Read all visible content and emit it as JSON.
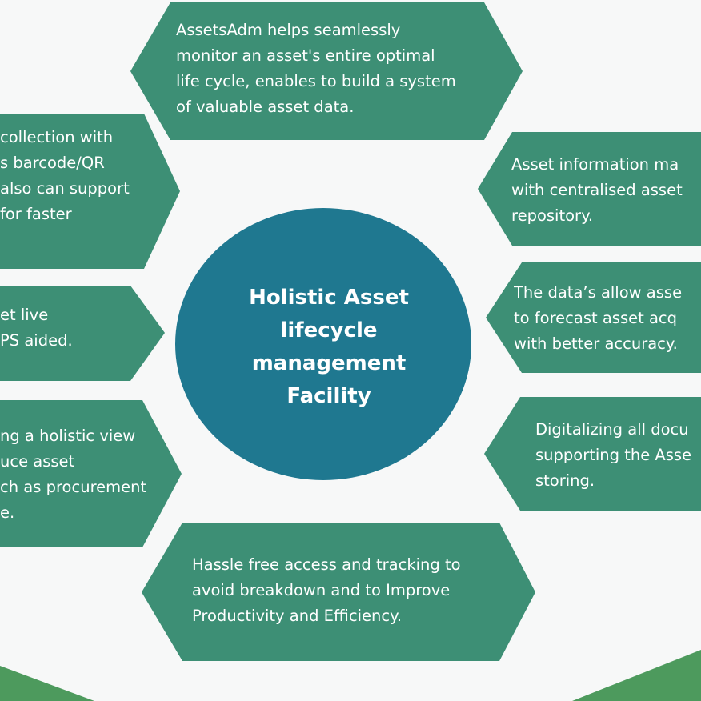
{
  "colors": {
    "background": "#f7f8f8",
    "hexagon": "#3d8f75",
    "center_circle": "#1f7890",
    "accent_corner": "#4d9a5d",
    "text": "#ffffff"
  },
  "center": {
    "title_lines": [
      "Holistic Asset",
      "lifecycle",
      "management",
      "Facility"
    ]
  },
  "hexagons": {
    "top": {
      "lines": [
        "AssetsAdm helps seamlessly",
        "monitor an asset's entire optimal",
        "life cycle, enables to build a system",
        "of valuable asset data."
      ]
    },
    "upper_left": {
      "lines": [
        "collection with",
        "s barcode/QR",
        "also can support",
        "for faster"
      ]
    },
    "mid_left": {
      "lines": [
        "et live",
        "PS aided."
      ]
    },
    "lower_left": {
      "lines": [
        "ng a holistic view",
        "uce asset",
        "ch as procurement",
        "e."
      ]
    },
    "bottom": {
      "lines": [
        "Hassle free access and tracking to",
        "avoid breakdown and to Improve",
        "Productivity and Efficiency."
      ]
    },
    "upper_right": {
      "lines": [
        "Asset information ma",
        "with centralised asset",
        "repository."
      ]
    },
    "mid_right": {
      "lines": [
        "The data’s allow asse",
        "to forecast asset acq",
        "with better accuracy."
      ]
    },
    "lower_right": {
      "lines": [
        "Digitalizing all docu",
        "supporting the Asse",
        "storing."
      ]
    }
  }
}
